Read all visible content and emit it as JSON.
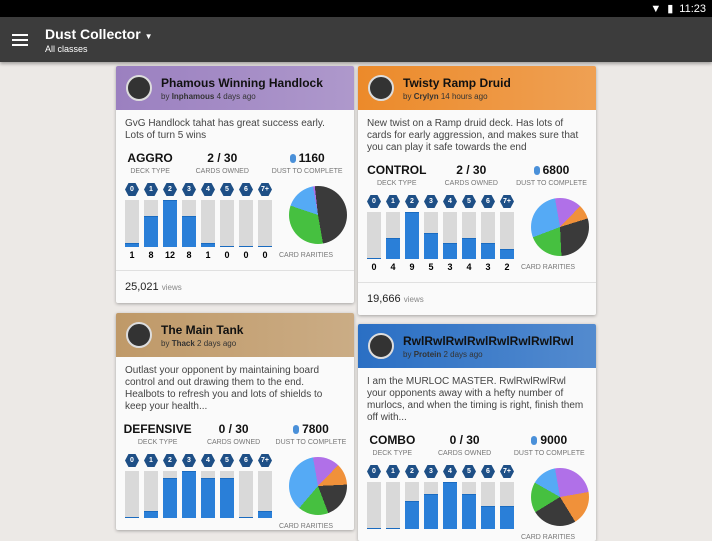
{
  "status": {
    "time": "11:23"
  },
  "appbar": {
    "title": "Dust Collector",
    "subtitle": "All classes"
  },
  "labels": {
    "deck_type": "DECK TYPE",
    "cards_owned": "CARDS OWNED",
    "dust": "DUST TO COMPLETE",
    "rarities": "CARD RARITIES",
    "views": "views",
    "by": "by",
    "mana": [
      "0",
      "1",
      "2",
      "3",
      "4",
      "5",
      "6",
      "7+"
    ]
  },
  "colors": {
    "bar": "#2a7fd8",
    "common": "#3a3a3a",
    "rare": "#55aaf5",
    "epic": "#b070e8",
    "legendary": "#f0913a",
    "basic": "#46c040"
  },
  "decks": [
    {
      "title": "Phamous Winning Handlock",
      "author": "Inphamous",
      "time": "4 days ago",
      "header_color": "#9b80c0",
      "desc": "GvG Handlock tahat has great success early. Lots of turn 5 wins",
      "type": "AGGRO",
      "owned": "2 / 30",
      "dust": "1160",
      "curve": [
        1,
        8,
        12,
        8,
        1,
        0,
        0,
        0
      ],
      "curve_max": 12,
      "show_counts": true,
      "views": "25,021",
      "rarities": {
        "rare": 17,
        "epic": 1,
        "legendary": 0,
        "common": 49,
        "basic": 33
      }
    },
    {
      "title": "Twisty Ramp Druid",
      "author": "Crylyn",
      "time": "14 hours ago",
      "header_color": "#ec8a2a",
      "desc": "New twist on a Ramp druid deck. Has lots of cards for early aggression, and makes sure that you can play it safe towards the end",
      "type": "CONTROL",
      "owned": "2 / 30",
      "dust": "6800",
      "curve": [
        0,
        4,
        9,
        5,
        3,
        4,
        3,
        2
      ],
      "curve_max": 9,
      "show_counts": true,
      "views": "19,666",
      "rarities": {
        "rare": 28,
        "epic": 15,
        "legendary": 8,
        "common": 29,
        "basic": 20
      }
    },
    {
      "title": "The Main Tank",
      "author": "Thack",
      "time": "2 days ago",
      "header_color": "#bf9968",
      "desc": "Outlast your opponent by maintaining board control and out drawing them to the end. Healbots to refresh you and lots of shields to keep your health...",
      "type": "DEFENSIVE",
      "owned": "0 / 30",
      "dust": "7800",
      "curve": [
        0,
        0.15,
        0.85,
        1,
        0.85,
        0.85,
        0,
        0.15
      ],
      "curve_max": 1,
      "show_counts": false,
      "rarities": {
        "rare": 36,
        "epic": 15,
        "legendary": 12,
        "common": 20,
        "basic": 17
      }
    },
    {
      "title": "RwlRwlRwlRwlRwlRwlRwlRwl",
      "author": "Protein",
      "time": "2 days ago",
      "header_color": "#2a6fc4",
      "desc": "I am the MURLOC MASTER. RwlRwlRwlRwl your opponents away with a hefty number of murlocs, and when the timing is right, finish them off with...",
      "type": "COMBO",
      "owned": "0 / 30",
      "dust": "9000",
      "curve": [
        0,
        0,
        0.6,
        0.75,
        1,
        0.75,
        0.5,
        0.5
      ],
      "curve_max": 1,
      "show_counts": false,
      "rarities": {
        "rare": 14,
        "epic": 25,
        "legendary": 19,
        "common": 25,
        "basic": 17
      }
    }
  ]
}
